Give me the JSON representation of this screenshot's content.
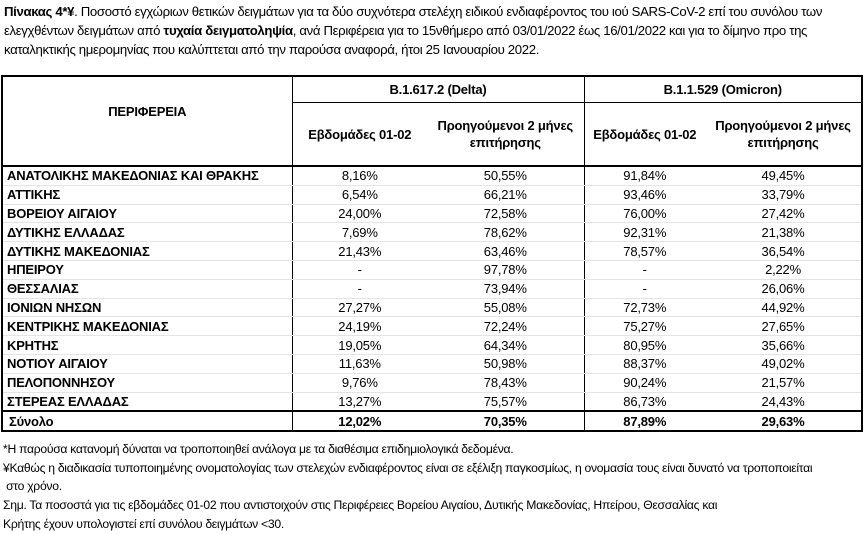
{
  "caption": {
    "label": "Πίνακας 4*¥",
    "text1": ". Ποσοστό εγχώριων θετικών δειγμάτων για τα δύο συχνότερα στελέχη ειδικού ενδιαφέροντος του ιού SARS-CoV-2 επί του συνόλου των ελεγχθέντων δειγμάτων από ",
    "bold": "τυχαία δειγματοληψία",
    "text2": ", ανά Περιφέρεια για το 15νθήμερο από 03/01/2022 έως 16/01/2022 και για το δίμηνο προ της καταληκτικής ημερομηνίας που καλύπτεται από την παρούσα αναφορά, ήτοι 25 Ιανουαρίου 2022."
  },
  "table": {
    "region_header": "ΠΕΡΙΦΕΡΕΙΑ",
    "groups": [
      "B.1.617.2 (Delta)",
      "B.1.1.529 (Omicron)"
    ],
    "subheaders": [
      "Εβδομάδες 01-02",
      "Προηγούμενοι 2 μήνες επιτήρησης",
      "Εβδομάδες 01-02",
      "Προηγούμενοι 2 μήνες επιτήρησης"
    ],
    "rows": [
      [
        "ΑΝΑΤΟΛΙΚΗΣ ΜΑΚΕΔΟΝΙΑΣ ΚΑΙ ΘΡΑΚΗΣ",
        "8,16%",
        "50,55%",
        "91,84%",
        "49,45%"
      ],
      [
        "ΑΤΤΙΚΗΣ",
        "6,54%",
        "66,21%",
        "93,46%",
        "33,79%"
      ],
      [
        "ΒΟΡΕΙΟΥ ΑΙΓΑΙΟΥ",
        "24,00%",
        "72,58%",
        "76,00%",
        "27,42%"
      ],
      [
        "ΔΥΤΙΚΗΣ ΕΛΛΑΔΑΣ",
        "7,69%",
        "78,62%",
        "92,31%",
        "21,38%"
      ],
      [
        "ΔΥΤΙΚΗΣ ΜΑΚΕΔΟΝΙΑΣ",
        "21,43%",
        "63,46%",
        "78,57%",
        "36,54%"
      ],
      [
        "ΗΠΕΙΡΟΥ",
        "-",
        "97,78%",
        "-",
        "2,22%"
      ],
      [
        "ΘΕΣΣΑΛΙΑΣ",
        "-",
        "73,94%",
        "-",
        "26,06%"
      ],
      [
        "ΙΟΝΙΩΝ ΝΗΣΩΝ",
        "27,27%",
        "55,08%",
        "72,73%",
        "44,92%"
      ],
      [
        "ΚΕΝΤΡΙΚΗΣ ΜΑΚΕΔΟΝΙΑΣ",
        "24,19%",
        "72,24%",
        "75,27%",
        "27,65%"
      ],
      [
        "ΚΡΗΤΗΣ",
        "19,05%",
        "64,34%",
        "80,95%",
        "35,66%"
      ],
      [
        "ΝΟΤΙΟΥ ΑΙΓΑΙΟΥ",
        "11,63%",
        "50,98%",
        "88,37%",
        "49,02%"
      ],
      [
        "ΠΕΛΟΠΟΝΝΗΣΟΥ",
        "9,76%",
        "78,43%",
        "90,24%",
        "21,57%"
      ],
      [
        "ΣΤΕΡΕΑΣ ΕΛΛΑΔΑΣ",
        "13,27%",
        "75,57%",
        "86,73%",
        "24,43%"
      ]
    ],
    "total": [
      "Σύνολο",
      "12,02%",
      "70,35%",
      "87,89%",
      "29,63%"
    ]
  },
  "notes": [
    "*Η παρούσα κατανομή δύναται να τροποποιηθεί ανάλογα με τα διαθέσιμα επιδημιολογικά δεδομένα.",
    "¥Καθώς η διαδικασία τυποποιημένης ονοματολογίας των στελεχών ενδιαφέροντος είναι σε εξέλιξη παγκοσμίως, η ονομασία τους είναι δυνατό να τροποποιείται",
    " στο χρόνο.",
    "Σημ. Τα ποσοστά για τις εβδομάδες 01-02 που αντιστοιχούν στις Περιφέρειες Βορείου Αιγαίου, Δυτικής Μακεδονίας, Ηπείρου, Θεσσαλίας και",
    "Κρήτης έχουν υπολογιστεί επί συνόλου δειγμάτων <30."
  ]
}
